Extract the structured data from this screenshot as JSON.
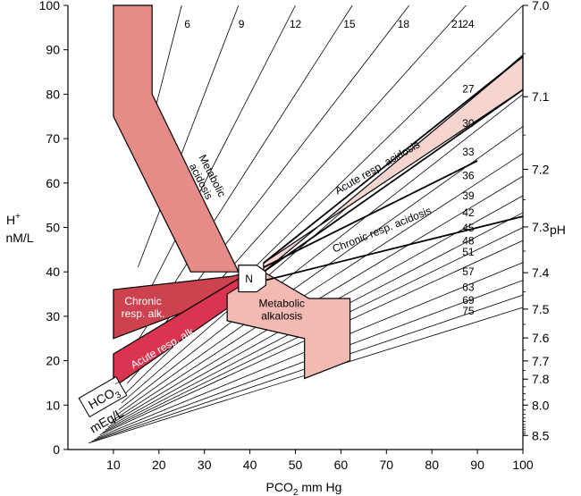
{
  "chart_data": {
    "type": "line",
    "xlabel": "PCO",
    "xlabel_sub": "2",
    "xlabel_suffix": " mm Hg",
    "ylabel_line1": "H",
    "ylabel_sup": "+",
    "ylabel_line2": "nM/L",
    "right_label": "pH",
    "hco3_label": "HCO",
    "hco3_sub": "3",
    "hco3_sup": "−",
    "hco3_unit": "mEq/L",
    "xlim": [
      0,
      100
    ],
    "ylim": [
      0,
      100
    ],
    "x_ticks": [
      10,
      20,
      30,
      40,
      50,
      60,
      70,
      80,
      90,
      100
    ],
    "y_ticks": [
      0,
      10,
      20,
      30,
      40,
      50,
      60,
      70,
      80,
      90,
      100
    ],
    "ph_ticks": [
      "7.0",
      "7.1",
      "7.2",
      "7.3",
      "7.4",
      "7.5",
      "7.6",
      "7.7",
      "7.8",
      "8.0",
      "8.5"
    ],
    "hco3_isopleths": [
      6,
      9,
      12,
      15,
      18,
      21,
      24,
      27,
      30,
      33,
      36,
      39,
      42,
      45,
      48,
      51,
      57,
      63,
      69,
      75
    ],
    "regions": [
      {
        "name": "Metabolic acidosis",
        "label_lines": [
          "Metabolic",
          "acidosis"
        ],
        "color": "#e58c88",
        "polygon": [
          [
            10,
            100
          ],
          [
            18.5,
            100
          ],
          [
            18.5,
            80
          ],
          [
            37.5,
            40
          ],
          [
            27,
            40
          ],
          [
            10,
            75
          ]
        ]
      },
      {
        "name": "Chronic resp. alk.",
        "label_lines": [
          "Chronic",
          "resp. alk."
        ],
        "color": "#cc434f",
        "polygon": [
          [
            10,
            36
          ],
          [
            36,
            39
          ],
          [
            40,
            40
          ],
          [
            36,
            35
          ],
          [
            10,
            25
          ]
        ]
      },
      {
        "name": "Acute resp. alk.",
        "label_lines": [
          "Acute resp. alk."
        ],
        "color": "#d93550",
        "polygon": [
          [
            10,
            21.5
          ],
          [
            40,
            40
          ],
          [
            36,
            32.5
          ],
          [
            10,
            14
          ]
        ]
      },
      {
        "name": "Metabolic alkalosis",
        "label_lines": [
          "Metabolic",
          "alkalosis"
        ],
        "color": "#f3b9b3",
        "polygon": [
          [
            35,
            35
          ],
          [
            43,
            40
          ],
          [
            53,
            34
          ],
          [
            62,
            34
          ],
          [
            62,
            20
          ],
          [
            52,
            16
          ],
          [
            52,
            25
          ],
          [
            35,
            29
          ]
        ]
      },
      {
        "name": "Acute resp. acidosis",
        "label_lines": [
          "Acute resp. acidosis"
        ],
        "color": "#f6d4d0",
        "polygon": [
          [
            43,
            40
          ],
          [
            100,
            88.5
          ],
          [
            100,
            81
          ],
          [
            43,
            42
          ]
        ]
      },
      {
        "name": "Chronic resp. acidosis",
        "label_lines": [
          "Chronic resp. acidosis"
        ],
        "color": "",
        "polygon": []
      }
    ],
    "boundary_lines": [
      [
        [
          43,
          42
        ],
        [
          100,
          88.5
        ]
      ],
      [
        [
          43,
          40
        ],
        [
          100,
          81
        ]
      ],
      [
        [
          43,
          41
        ],
        [
          90,
          65
        ]
      ],
      [
        [
          43,
          38
        ],
        [
          100,
          52.5
        ]
      ]
    ],
    "normal_label": "N",
    "normal_box": [
      [
        37.5,
        41.5
      ],
      [
        41.5,
        41.5
      ],
      [
        43.5,
        40
      ],
      [
        43.5,
        37
      ],
      [
        41.5,
        35.5
      ],
      [
        37.5,
        35.5
      ]
    ]
  }
}
